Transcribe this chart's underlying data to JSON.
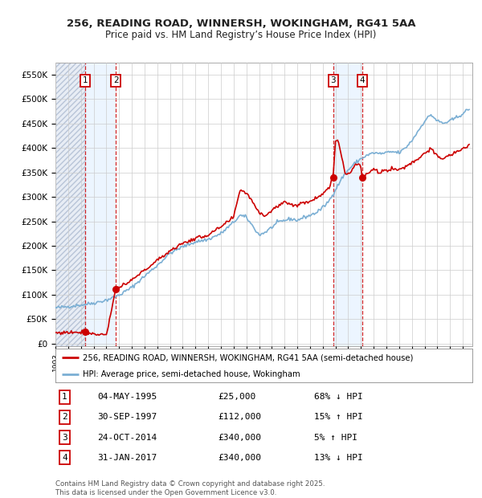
{
  "title_line1": "256, READING ROAD, WINNERSH, WOKINGHAM, RG41 5AA",
  "title_line2": "Price paid vs. HM Land Registry’s House Price Index (HPI)",
  "legend_line1": "256, READING ROAD, WINNERSH, WOKINGHAM, RG41 5AA (semi-detached house)",
  "legend_line2": "HPI: Average price, semi-detached house, Wokingham",
  "footer_line1": "Contains HM Land Registry data © Crown copyright and database right 2025.",
  "footer_line2": "This data is licensed under the Open Government Licence v3.0.",
  "transactions": [
    {
      "num": 1,
      "date": "04-MAY-1995",
      "price": 25000,
      "rel": "68% ↓ HPI",
      "date_dec": 1995.34
    },
    {
      "num": 2,
      "date": "30-SEP-1997",
      "price": 112000,
      "rel": "15% ↑ HPI",
      "date_dec": 1997.75
    },
    {
      "num": 3,
      "date": "24-OCT-2014",
      "price": 340000,
      "rel": "5% ↑ HPI",
      "date_dec": 2014.81
    },
    {
      "num": 4,
      "date": "31-JAN-2017",
      "price": 340000,
      "rel": "13% ↓ HPI",
      "date_dec": 2017.08
    }
  ],
  "ylabel_vals": [
    0,
    50000,
    100000,
    150000,
    200000,
    250000,
    300000,
    350000,
    400000,
    450000,
    500000,
    550000
  ],
  "ylabel_labels": [
    "£0",
    "£50K",
    "£100K",
    "£150K",
    "£200K",
    "£250K",
    "£300K",
    "£350K",
    "£400K",
    "£450K",
    "£500K",
    "£550K"
  ],
  "xlim": [
    1993.0,
    2025.75
  ],
  "ylim": [
    -5000,
    575000
  ],
  "hpi_color": "#7bafd4",
  "price_color": "#cc0000",
  "background_color": "#ffffff",
  "plot_bg_color": "#ffffff",
  "grid_color": "#cccccc",
  "shade_color": "#ddeeff",
  "hpi_waypoints": [
    [
      1993.0,
      73000
    ],
    [
      1994.0,
      76000
    ],
    [
      1995.0,
      79000
    ],
    [
      1996.0,
      83000
    ],
    [
      1997.0,
      89000
    ],
    [
      1998.0,
      99000
    ],
    [
      1999.0,
      115000
    ],
    [
      2000.0,
      138000
    ],
    [
      2001.0,
      160000
    ],
    [
      2002.0,
      185000
    ],
    [
      2003.0,
      198000
    ],
    [
      2004.0,
      208000
    ],
    [
      2005.0,
      213000
    ],
    [
      2006.0,
      225000
    ],
    [
      2007.0,
      248000
    ],
    [
      2007.5,
      262000
    ],
    [
      2008.0,
      258000
    ],
    [
      2008.5,
      240000
    ],
    [
      2009.0,
      222000
    ],
    [
      2009.5,
      228000
    ],
    [
      2010.0,
      238000
    ],
    [
      2010.5,
      248000
    ],
    [
      2011.0,
      252000
    ],
    [
      2011.5,
      255000
    ],
    [
      2012.0,
      252000
    ],
    [
      2012.5,
      258000
    ],
    [
      2013.0,
      262000
    ],
    [
      2013.5,
      268000
    ],
    [
      2014.0,
      278000
    ],
    [
      2014.5,
      292000
    ],
    [
      2015.0,
      315000
    ],
    [
      2015.5,
      338000
    ],
    [
      2016.0,
      355000
    ],
    [
      2016.5,
      368000
    ],
    [
      2017.0,
      378000
    ],
    [
      2017.5,
      385000
    ],
    [
      2018.0,
      390000
    ],
    [
      2018.5,
      388000
    ],
    [
      2019.0,
      390000
    ],
    [
      2019.5,
      392000
    ],
    [
      2020.0,
      390000
    ],
    [
      2020.5,
      400000
    ],
    [
      2021.0,
      415000
    ],
    [
      2021.5,
      435000
    ],
    [
      2022.0,
      455000
    ],
    [
      2022.5,
      468000
    ],
    [
      2023.0,
      455000
    ],
    [
      2023.5,
      450000
    ],
    [
      2024.0,
      455000
    ],
    [
      2024.5,
      462000
    ],
    [
      2025.0,
      470000
    ],
    [
      2025.5,
      480000
    ]
  ],
  "red_waypoints": [
    [
      1993.0,
      22000
    ],
    [
      1994.0,
      23000
    ],
    [
      1995.0,
      24000
    ],
    [
      1995.34,
      25000
    ],
    [
      1995.5,
      22000
    ],
    [
      1996.0,
      20000
    ],
    [
      1996.5,
      19000
    ],
    [
      1997.0,
      18500
    ],
    [
      1997.75,
      112000
    ],
    [
      1998.0,
      115000
    ],
    [
      1998.5,
      120000
    ],
    [
      1999.0,
      130000
    ],
    [
      2000.0,
      150000
    ],
    [
      2001.0,
      170000
    ],
    [
      2002.0,
      190000
    ],
    [
      2003.0,
      205000
    ],
    [
      2004.0,
      215000
    ],
    [
      2005.0,
      222000
    ],
    [
      2006.0,
      238000
    ],
    [
      2007.0,
      258000
    ],
    [
      2007.5,
      315000
    ],
    [
      2008.0,
      308000
    ],
    [
      2008.5,
      290000
    ],
    [
      2009.0,
      268000
    ],
    [
      2009.5,
      262000
    ],
    [
      2010.0,
      272000
    ],
    [
      2010.5,
      282000
    ],
    [
      2011.0,
      290000
    ],
    [
      2011.5,
      285000
    ],
    [
      2012.0,
      282000
    ],
    [
      2012.5,
      288000
    ],
    [
      2013.0,
      292000
    ],
    [
      2013.5,
      298000
    ],
    [
      2014.0,
      308000
    ],
    [
      2014.5,
      318000
    ],
    [
      2014.81,
      340000
    ],
    [
      2015.0,
      415000
    ],
    [
      2015.2,
      418000
    ],
    [
      2015.5,
      380000
    ],
    [
      2015.8,
      345000
    ],
    [
      2016.0,
      348000
    ],
    [
      2016.3,
      355000
    ],
    [
      2016.5,
      365000
    ],
    [
      2016.8,
      368000
    ],
    [
      2017.0,
      360000
    ],
    [
      2017.08,
      340000
    ],
    [
      2017.3,
      342000
    ],
    [
      2017.5,
      348000
    ],
    [
      2018.0,
      355000
    ],
    [
      2018.5,
      350000
    ],
    [
      2019.0,
      355000
    ],
    [
      2019.5,
      358000
    ],
    [
      2020.0,
      355000
    ],
    [
      2020.5,
      362000
    ],
    [
      2021.0,
      370000
    ],
    [
      2021.5,
      378000
    ],
    [
      2022.0,
      390000
    ],
    [
      2022.5,
      398000
    ],
    [
      2023.0,
      382000
    ],
    [
      2023.5,
      378000
    ],
    [
      2024.0,
      385000
    ],
    [
      2024.5,
      392000
    ],
    [
      2025.0,
      398000
    ],
    [
      2025.5,
      405000
    ]
  ]
}
